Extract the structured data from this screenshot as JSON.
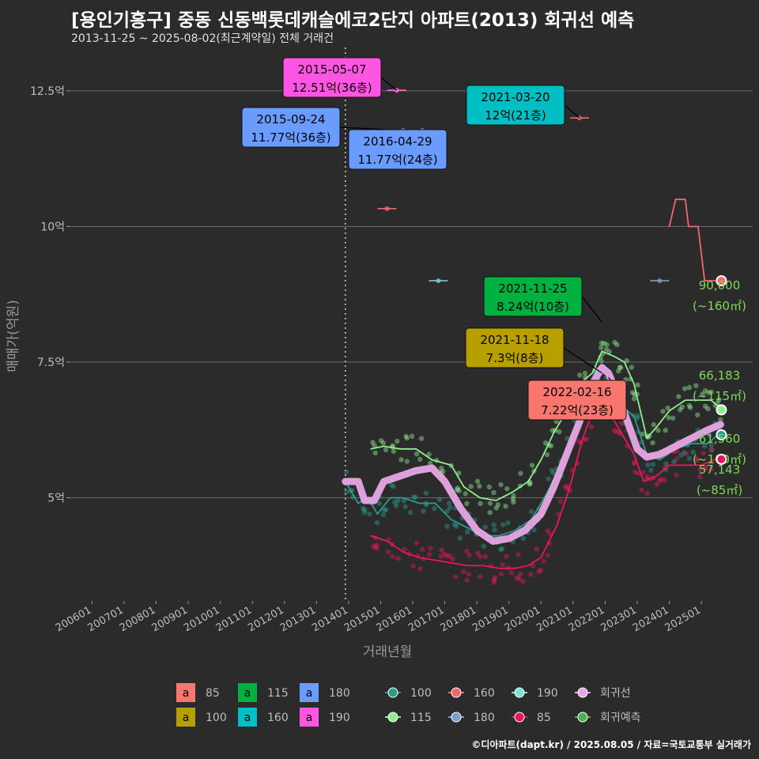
{
  "title": "[용인기흥구] 중동 신동백롯데캐슬에코2단지 아파트(2013) 회귀선 예측",
  "subtitle": "2013-11-25 ~ 2025-08-02(최근계약일) 전체 거래건",
  "footer": "©디아파트(dapt.kr) / 2025.08.05 / 자료=국토교통부 실거래가",
  "chart_data": {
    "type": "line",
    "xlabel": "거래년월",
    "ylabel": "매매가(억원)",
    "y_ticks": [
      {
        "v": 5,
        "label": "5억"
      },
      {
        "v": 7.5,
        "label": "7.5억"
      },
      {
        "v": 10,
        "label": "10억"
      },
      {
        "v": 12.5,
        "label": "12.5억"
      }
    ],
    "ylim": [
      3.1,
      13.3
    ],
    "xlim": [
      2005.3,
      2026.6
    ],
    "x_ticks": [
      "200601",
      "200701",
      "200801",
      "200901",
      "201001",
      "201101",
      "201201",
      "201301",
      "201401",
      "201501",
      "201601",
      "201701",
      "201801",
      "201901",
      "202001",
      "202101",
      "202201",
      "202301",
      "202401",
      "202501"
    ],
    "grid": true,
    "first_contract": 2013.9,
    "series": [
      {
        "name": "100",
        "color": "#2a9d8f",
        "points": [
          [
            2013.9,
            5.3
          ],
          [
            2014.3,
            4.9
          ],
          [
            2014.6,
            5.0
          ],
          [
            2014.9,
            4.7
          ],
          [
            2015.3,
            5.0
          ],
          [
            2015.7,
            5.0
          ],
          [
            2016.2,
            4.9
          ],
          [
            2016.7,
            4.9
          ],
          [
            2017.2,
            4.6
          ],
          [
            2017.7,
            4.45
          ],
          [
            2018.2,
            4.3
          ],
          [
            2018.7,
            4.3
          ],
          [
            2019.2,
            4.4
          ],
          [
            2019.7,
            4.6
          ],
          [
            2020.2,
            5.1
          ],
          [
            2020.6,
            5.6
          ],
          [
            2021.0,
            6.1
          ],
          [
            2021.5,
            6.9
          ],
          [
            2021.8,
            7.2
          ],
          [
            2022.1,
            7.0
          ],
          [
            2022.5,
            6.7
          ],
          [
            2022.9,
            6.5
          ],
          [
            2023.3,
            5.8
          ],
          [
            2023.7,
            5.7
          ],
          [
            2024.2,
            5.9
          ],
          [
            2024.7,
            6.0
          ],
          [
            2025.2,
            6.0
          ],
          [
            2025.6,
            6.2
          ]
        ]
      },
      {
        "name": "115",
        "color": "#90ee90",
        "points": [
          [
            2014.7,
            5.9
          ],
          [
            2015.1,
            5.95
          ],
          [
            2015.6,
            5.9
          ],
          [
            2016.1,
            5.9
          ],
          [
            2016.6,
            5.7
          ],
          [
            2017.2,
            5.6
          ],
          [
            2017.6,
            5.2
          ],
          [
            2018.1,
            5.0
          ],
          [
            2018.6,
            4.95
          ],
          [
            2019.1,
            5.1
          ],
          [
            2019.6,
            5.3
          ],
          [
            2020.0,
            5.7
          ],
          [
            2020.4,
            6.2
          ],
          [
            2020.8,
            6.6
          ],
          [
            2021.2,
            7.1
          ],
          [
            2021.6,
            7.3
          ],
          [
            2021.9,
            7.7
          ],
          [
            2022.3,
            7.6
          ],
          [
            2022.6,
            7.5
          ],
          [
            2022.9,
            7.1
          ],
          [
            2023.3,
            6.1
          ],
          [
            2023.6,
            6.3
          ],
          [
            2024.0,
            6.6
          ],
          [
            2024.5,
            6.8
          ],
          [
            2024.9,
            6.8
          ],
          [
            2025.3,
            6.8
          ],
          [
            2025.6,
            6.65
          ]
        ]
      },
      {
        "name": "85",
        "color": "#e8175d",
        "points": [
          [
            2014.7,
            4.3
          ],
          [
            2015.2,
            4.2
          ],
          [
            2015.7,
            4.0
          ],
          [
            2016.2,
            3.9
          ],
          [
            2016.7,
            3.85
          ],
          [
            2017.2,
            3.8
          ],
          [
            2017.7,
            3.75
          ],
          [
            2018.2,
            3.75
          ],
          [
            2018.7,
            3.7
          ],
          [
            2019.2,
            3.7
          ],
          [
            2019.6,
            3.75
          ],
          [
            2020.0,
            3.9
          ],
          [
            2020.5,
            4.5
          ],
          [
            2020.9,
            5.2
          ],
          [
            2021.3,
            6.1
          ],
          [
            2021.7,
            6.7
          ],
          [
            2022.1,
            6.6
          ],
          [
            2022.5,
            6.2
          ],
          [
            2022.9,
            5.8
          ],
          [
            2023.2,
            5.3
          ],
          [
            2023.6,
            5.4
          ],
          [
            2024.0,
            5.6
          ],
          [
            2024.5,
            5.6
          ],
          [
            2025.0,
            5.6
          ],
          [
            2025.6,
            5.75
          ]
        ]
      },
      {
        "name": "160",
        "color": "#f0686a",
        "points": [
          [
            2024.0,
            10.0
          ],
          [
            2024.2,
            10.5
          ],
          [
            2024.4,
            10.5
          ],
          [
            2024.5,
            10.5
          ],
          [
            2024.6,
            10.0
          ],
          [
            2024.9,
            10.0
          ],
          [
            2025.1,
            9.0
          ],
          [
            2025.6,
            9.0
          ]
        ]
      },
      {
        "name": "회귀선",
        "color": "#e7a6e4",
        "points": [
          [
            2013.9,
            5.3
          ],
          [
            2014.3,
            5.3
          ],
          [
            2014.5,
            4.95
          ],
          [
            2014.8,
            4.95
          ],
          [
            2015.1,
            5.3
          ],
          [
            2015.6,
            5.4
          ],
          [
            2016.1,
            5.5
          ],
          [
            2016.6,
            5.55
          ],
          [
            2017.0,
            5.3
          ],
          [
            2017.5,
            4.8
          ],
          [
            2018.0,
            4.4
          ],
          [
            2018.5,
            4.2
          ],
          [
            2019.0,
            4.25
          ],
          [
            2019.5,
            4.4
          ],
          [
            2020.0,
            4.7
          ],
          [
            2020.4,
            5.2
          ],
          [
            2020.8,
            5.8
          ],
          [
            2021.2,
            6.4
          ],
          [
            2021.6,
            7.1
          ],
          [
            2021.9,
            7.4
          ],
          [
            2022.1,
            7.3
          ],
          [
            2022.4,
            6.9
          ],
          [
            2022.7,
            6.4
          ],
          [
            2023.0,
            5.9
          ],
          [
            2023.3,
            5.75
          ],
          [
            2023.7,
            5.8
          ],
          [
            2024.2,
            5.95
          ],
          [
            2024.7,
            6.1
          ],
          [
            2025.2,
            6.25
          ],
          [
            2025.6,
            6.35
          ]
        ]
      }
    ],
    "flat_trades": [
      {
        "color": "#ff6ee6",
        "x": 2015.5,
        "y": 12.51
      },
      {
        "color": "#7a9fc9",
        "x": 2015.7,
        "y": 11.77
      },
      {
        "color": "#7a9fc9",
        "x": 2016.3,
        "y": 11.77
      },
      {
        "color": "#f0686a",
        "x": 2021.2,
        "y": 12.0
      },
      {
        "color": "#f0686a",
        "x": 2015.2,
        "y": 10.33
      },
      {
        "color": "#7cc8e0",
        "x": 2016.8,
        "y": 9.0
      },
      {
        "color": "#7a9fc9",
        "x": 2023.7,
        "y": 9.0
      }
    ],
    "annotations": [
      {
        "date": "2015-05-07",
        "price": "12.51억(36층)",
        "fill": "#ff55e3",
        "text": "#000000",
        "x": 2015.5,
        "y": 12.51
      },
      {
        "date": "2015-09-24",
        "price": "11.77억(36층)",
        "fill": "#6a9bff",
        "text": "#000000",
        "x": 2015.7,
        "y": 11.77
      },
      {
        "date": "2016-04-29",
        "price": "11.77억(24층)",
        "fill": "#6a9bff",
        "text": "#000000",
        "x": 2016.3,
        "y": 11.77
      },
      {
        "date": "2021-03-20",
        "price": "12억(21층)",
        "fill": "#00bfc4",
        "text": "#000000",
        "x": 2021.2,
        "y": 12.0
      },
      {
        "date": "2021-11-25",
        "price": "8.24억(10층)",
        "fill": "#00b140",
        "text": "#000000",
        "x": 2021.9,
        "y": 8.24
      },
      {
        "date": "2021-11-18",
        "price": "7.3억(8층)",
        "fill": "#b79f00",
        "text": "#000000",
        "x": 2021.9,
        "y": 7.3
      },
      {
        "date": "2022-02-16",
        "price": "7.22억(23층)",
        "fill": "#f8766d",
        "text": "#000000",
        "x": 2022.1,
        "y": 7.22
      }
    ],
    "end_labels": [
      {
        "value": "90,000",
        "area": "(~160㎡)",
        "y": 9.0,
        "dot": "#f0686a"
      },
      {
        "value": "66,183",
        "area": "(~115㎡)",
        "y": 6.62,
        "dot": "#90ee90"
      },
      {
        "value": "61,560",
        "area": "(~100㎡)",
        "y": 6.16,
        "dot": "#2a9d8f"
      },
      {
        "value": "57,143",
        "area": "(~85㎡)",
        "y": 5.71,
        "dot": "#e8175d"
      }
    ]
  },
  "legend": {
    "label_boxes": [
      {
        "symbol": "a",
        "name": "85",
        "color": "#f8766d"
      },
      {
        "symbol": "a",
        "name": "100",
        "color": "#b79f00"
      },
      {
        "symbol": "a",
        "name": "115",
        "color": "#00b140"
      },
      {
        "symbol": "a",
        "name": "160",
        "color": "#00bfc4"
      },
      {
        "symbol": "a",
        "name": "180",
        "color": "#6a9bff"
      },
      {
        "symbol": "a",
        "name": "190",
        "color": "#ff55e3"
      }
    ],
    "lines": [
      {
        "name": "100",
        "color": "#2a9d8f"
      },
      {
        "name": "115",
        "color": "#90ee90"
      },
      {
        "name": "160",
        "color": "#f0686a"
      },
      {
        "name": "180",
        "color": "#7a9fc9"
      },
      {
        "name": "190",
        "color": "#7de3d8"
      },
      {
        "name": "85",
        "color": "#e8175d"
      },
      {
        "name": "회귀선",
        "color": "#e7a6e4"
      },
      {
        "name": "회귀예측",
        "color": "#4caf50"
      }
    ]
  }
}
